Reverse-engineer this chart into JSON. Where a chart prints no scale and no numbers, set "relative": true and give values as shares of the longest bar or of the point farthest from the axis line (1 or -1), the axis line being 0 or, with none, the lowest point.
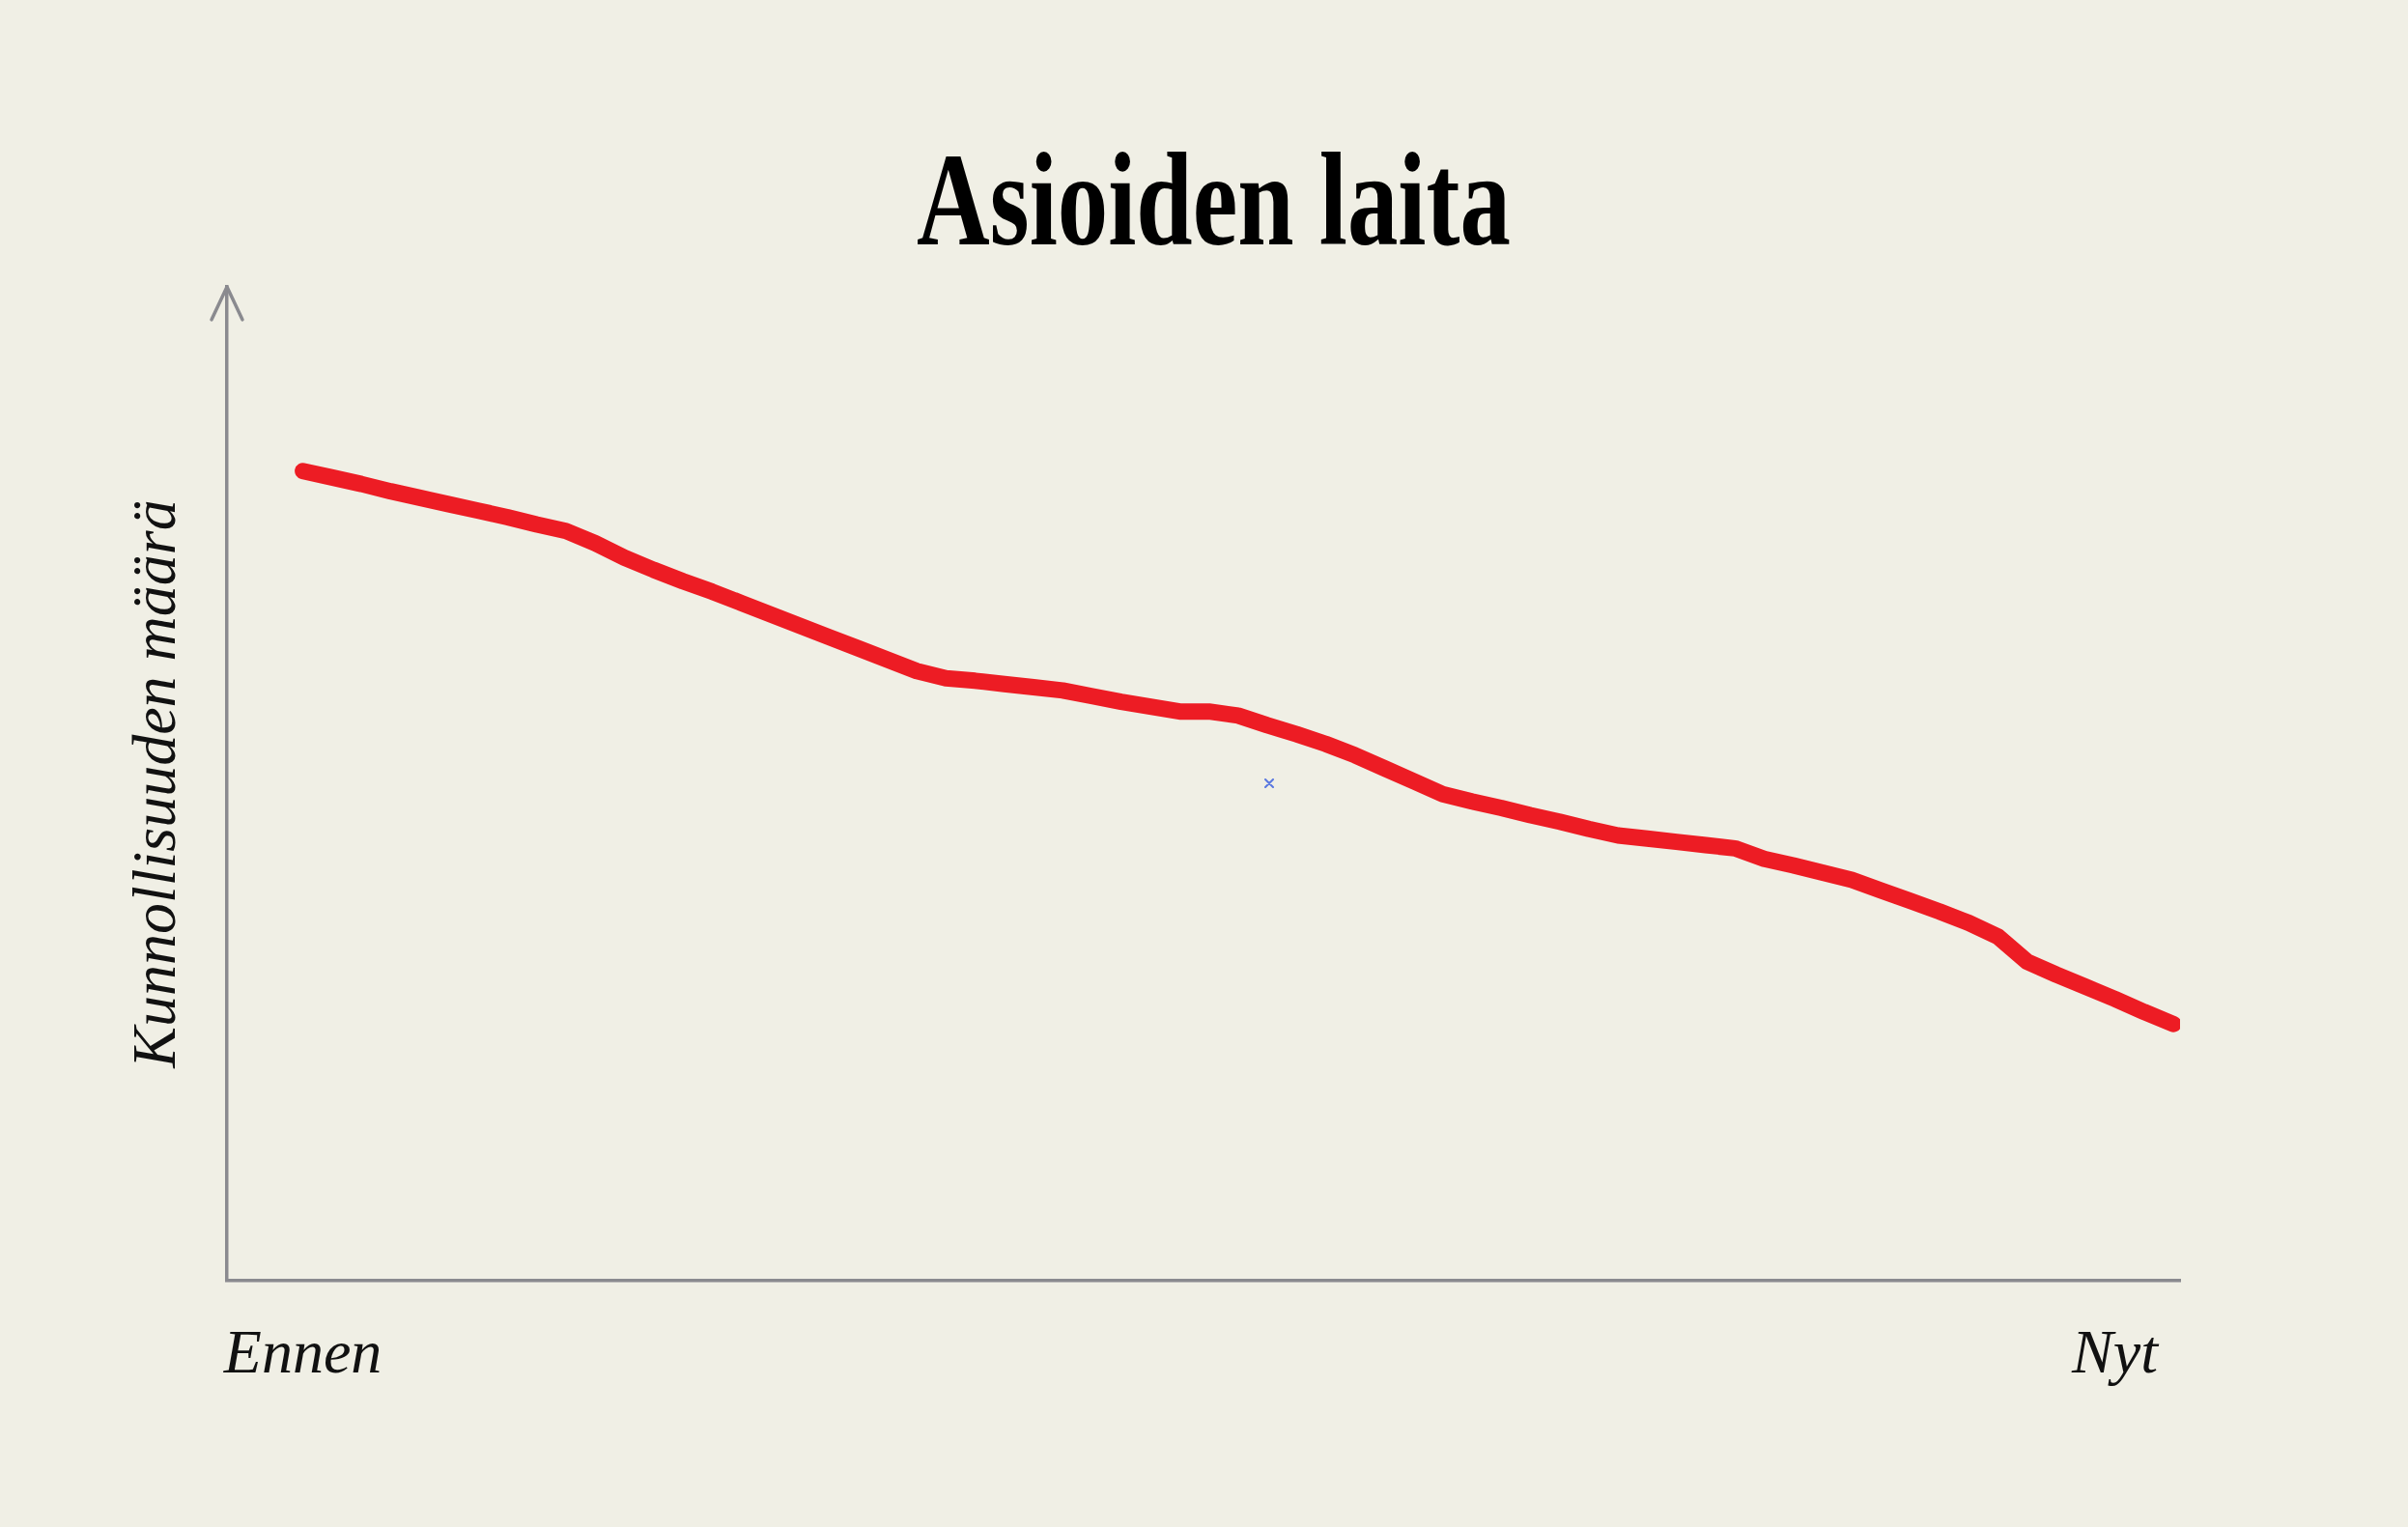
{
  "chart_data": {
    "type": "line",
    "title": "Asioiden laita",
    "ylabel": "Kunnollisuuden määrä",
    "relative": true,
    "categories": [
      "Ennen",
      null,
      null,
      null,
      null,
      null,
      null,
      null,
      null,
      null,
      null,
      null,
      null,
      null,
      null,
      null,
      null,
      null,
      null,
      null,
      null,
      null,
      null,
      null,
      null,
      null,
      null,
      null,
      null,
      null,
      null,
      null,
      null,
      null,
      null,
      null,
      null,
      null,
      null,
      null,
      null,
      null,
      null,
      null,
      null,
      null,
      null,
      null,
      null,
      null,
      null,
      null,
      null,
      null,
      null,
      null,
      null,
      null,
      null,
      null,
      null,
      null,
      "Nyt",
      null,
      null
    ],
    "series": [
      {
        "color": "#ed1c24",
        "values": [
          1,
          0.992,
          0.984,
          0.975,
          0.967,
          0.959,
          0.951,
          0.943,
          0.934,
          0.926,
          0.911,
          0.893,
          0.878,
          0.864,
          0.851,
          0.837,
          0.823,
          0.809,
          0.795,
          0.781,
          0.767,
          0.753,
          0.744,
          0.741,
          0.737,
          0.733,
          0.729,
          0.722,
          0.715,
          0.709,
          0.703,
          0.703,
          0.698,
          0.686,
          0.675,
          0.663,
          0.649,
          0.633,
          0.617,
          0.601,
          0.592,
          0.584,
          0.575,
          0.567,
          0.558,
          0.55,
          0.546,
          0.542,
          0.538,
          0.534,
          0.521,
          0.513,
          0.504,
          0.495,
          0.482,
          0.469,
          0.456,
          0.442,
          0.425,
          0.394,
          0.378,
          0.363,
          0.348,
          0.332,
          0.317
        ]
      }
    ]
  }
}
